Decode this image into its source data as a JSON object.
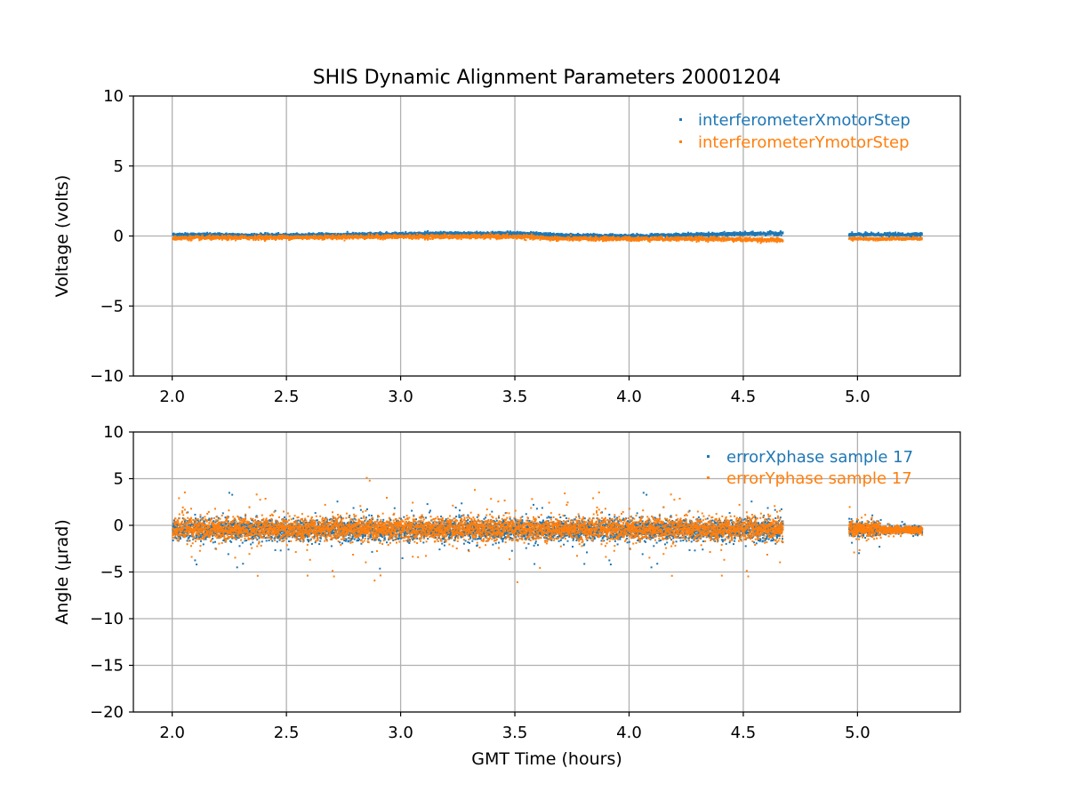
{
  "title": "SHIS Dynamic Alignment Parameters 20001204",
  "colors": {
    "series_x": "#1f77b4",
    "series_y": "#ff7f0e",
    "grid": "#b0b0b0"
  },
  "chart_data": [
    {
      "type": "scatter",
      "title": "SHIS Dynamic Alignment Parameters 20001204",
      "xlabel": "",
      "ylabel": "Voltage (volts)",
      "xlim": [
        1.83,
        5.45
      ],
      "ylim": [
        -10,
        10
      ],
      "xticks": [
        2.0,
        2.5,
        3.0,
        3.5,
        4.0,
        4.5,
        5.0
      ],
      "xtick_labels": [
        "2.0",
        "2.5",
        "3.0",
        "3.5",
        "4.0",
        "4.5",
        "5.0"
      ],
      "yticks": [
        10,
        5,
        0,
        -5,
        -10
      ],
      "ytick_labels": [
        "10",
        "5",
        "0",
        "−5",
        "−10"
      ],
      "grid": true,
      "legend_position": "top-right",
      "series": [
        {
          "name": "interferometerXmotorStep",
          "segments": [
            {
              "x_start": 2.0,
              "x_end": 4.67,
              "samples": [
                [
                  2.0,
                  0.1
                ],
                [
                  2.5,
                  0.05
                ],
                [
                  3.0,
                  0.15
                ],
                [
                  3.5,
                  0.2
                ],
                [
                  3.7,
                  0.05
                ],
                [
                  4.0,
                  0.0
                ],
                [
                  4.3,
                  0.1
                ],
                [
                  4.67,
                  0.2
                ]
              ],
              "spread": 0.1
            },
            {
              "x_start": 4.96,
              "x_end": 5.28,
              "samples": [
                [
                  4.96,
                  0.1
                ],
                [
                  5.28,
                  0.1
                ]
              ],
              "spread": 0.1
            }
          ]
        },
        {
          "name": "interferometerYmotorStep",
          "segments": [
            {
              "x_start": 2.0,
              "x_end": 4.67,
              "samples": [
                [
                  2.0,
                  -0.15
                ],
                [
                  2.5,
                  -0.1
                ],
                [
                  3.0,
                  -0.05
                ],
                [
                  3.5,
                  -0.05
                ],
                [
                  3.7,
                  -0.2
                ],
                [
                  4.0,
                  -0.2
                ],
                [
                  4.3,
                  -0.2
                ],
                [
                  4.67,
                  -0.3
                ]
              ],
              "spread": 0.12
            },
            {
              "x_start": 4.96,
              "x_end": 5.28,
              "samples": [
                [
                  4.96,
                  -0.2
                ],
                [
                  5.28,
                  -0.2
                ]
              ],
              "spread": 0.08
            }
          ]
        }
      ]
    },
    {
      "type": "scatter",
      "title": "",
      "xlabel": "GMT Time (hours)",
      "ylabel": "Angle (μrad)",
      "xlim": [
        1.83,
        5.45
      ],
      "ylim": [
        -20,
        10
      ],
      "xticks": [
        2.0,
        2.5,
        3.0,
        3.5,
        4.0,
        4.5,
        5.0
      ],
      "xtick_labels": [
        "2.0",
        "2.5",
        "3.0",
        "3.5",
        "4.0",
        "4.5",
        "5.0"
      ],
      "yticks": [
        10,
        5,
        0,
        -5,
        -10,
        -15,
        -20
      ],
      "ytick_labels": [
        "10",
        "5",
        "0",
        "−5",
        "−10",
        "−15",
        "−20"
      ],
      "grid": true,
      "legend_position": "top-right",
      "series": [
        {
          "name": "errorXphase sample 17",
          "segments": [
            {
              "x_start": 2.0,
              "x_end": 4.67,
              "center": -0.5,
              "band": 1.0,
              "outliers": 1.6
            },
            {
              "x_start": 4.96,
              "x_end": 5.1,
              "center": -0.4,
              "band": 0.7,
              "outliers": 1.0
            },
            {
              "x_start": 5.1,
              "x_end": 5.28,
              "center": -0.5,
              "band": 0.35,
              "outliers": 0.5
            }
          ]
        },
        {
          "name": "errorYphase sample 17",
          "segments": [
            {
              "x_start": 2.0,
              "x_end": 4.67,
              "center": -0.4,
              "band": 1.1,
              "outliers": 2.2
            },
            {
              "x_start": 4.96,
              "x_end": 5.1,
              "center": -0.4,
              "band": 0.8,
              "outliers": 1.0
            },
            {
              "x_start": 5.1,
              "x_end": 5.28,
              "center": -0.5,
              "band": 0.35,
              "outliers": 0.5
            }
          ]
        }
      ]
    }
  ]
}
